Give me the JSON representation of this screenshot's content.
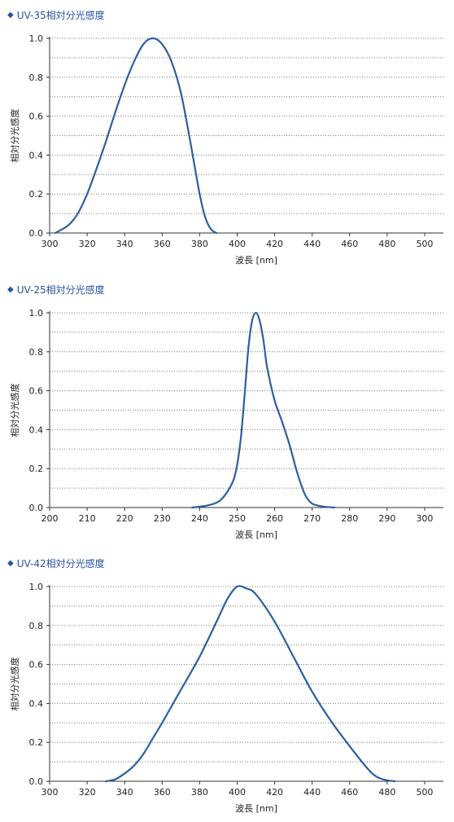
{
  "charts": [
    {
      "title": "UV-35相対分光感度",
      "bullet": "◆"
    },
    {
      "title": "UV-25相対分光感度",
      "bullet": "◆"
    },
    {
      "title": "UV-42相対分光感度",
      "bullet": "◆"
    }
  ],
  "chart_data": [
    {
      "type": "line",
      "title": "UV-35相対分光感度",
      "xlabel": "波長 [nm]",
      "ylabel": "相対分光感度",
      "xlim": [
        300,
        510
      ],
      "ylim": [
        0,
        1.0
      ],
      "xticks": [
        300,
        320,
        340,
        360,
        380,
        400,
        420,
        440,
        460,
        480,
        500
      ],
      "yticks": [
        0.0,
        0.2,
        0.4,
        0.6,
        0.8,
        1.0
      ],
      "tick_labels_y": [
        "0.0",
        "0.2",
        "0.4",
        "0.6",
        "0.8",
        "1.0"
      ],
      "grid": "horizontal dotted every 0.1",
      "series": [
        {
          "color": "#2c5f9e",
          "x": [
            303,
            310,
            315,
            320,
            325,
            330,
            335,
            340,
            345,
            350,
            355,
            360,
            365,
            370,
            375,
            380,
            383,
            386,
            389
          ],
          "y": [
            0.0,
            0.04,
            0.1,
            0.2,
            0.33,
            0.47,
            0.62,
            0.76,
            0.88,
            0.97,
            1.0,
            0.97,
            0.88,
            0.72,
            0.47,
            0.2,
            0.08,
            0.02,
            0.0
          ]
        }
      ]
    },
    {
      "type": "line",
      "title": "UV-25相対分光感度",
      "xlabel": "波長 [nm]",
      "ylabel": "相対分光感度",
      "xlim": [
        200,
        305
      ],
      "ylim": [
        0,
        1.0
      ],
      "xticks": [
        200,
        210,
        220,
        230,
        240,
        250,
        260,
        270,
        280,
        290,
        300
      ],
      "yticks": [
        0.0,
        0.2,
        0.4,
        0.6,
        0.8,
        1.0
      ],
      "tick_labels_y": [
        "0.0",
        "0.2",
        "0.4",
        "0.6",
        "0.8",
        "1.0"
      ],
      "grid": "horizontal dotted every 0.1",
      "series": [
        {
          "color": "#2c5f9e",
          "x": [
            238,
            242,
            245,
            247,
            249,
            250,
            251,
            252,
            253,
            254,
            255,
            256,
            257,
            258,
            260,
            262,
            264,
            266,
            268,
            270,
            273,
            276
          ],
          "y": [
            0.0,
            0.01,
            0.03,
            0.07,
            0.14,
            0.22,
            0.36,
            0.58,
            0.82,
            0.96,
            1.0,
            0.96,
            0.86,
            0.72,
            0.55,
            0.44,
            0.32,
            0.18,
            0.07,
            0.02,
            0.005,
            0.0
          ]
        }
      ]
    },
    {
      "type": "line",
      "title": "UV-42相対分光感度",
      "xlabel": "波長 [nm]",
      "ylabel": "相対分光感度",
      "xlim": [
        300,
        510
      ],
      "ylim": [
        0,
        1.0
      ],
      "xticks": [
        300,
        320,
        340,
        360,
        380,
        400,
        420,
        440,
        460,
        480,
        500
      ],
      "yticks": [
        0.0,
        0.2,
        0.4,
        0.6,
        0.8,
        1.0
      ],
      "tick_labels_y": [
        "0.0",
        "0.2",
        "0.4",
        "0.6",
        "0.8",
        "1.0"
      ],
      "grid": "horizontal dotted every 0.1",
      "series": [
        {
          "color": "#2c5f9e",
          "x": [
            330,
            335,
            340,
            345,
            350,
            355,
            360,
            370,
            380,
            390,
            395,
            400,
            405,
            410,
            420,
            430,
            440,
            450,
            460,
            470,
            475,
            480,
            484
          ],
          "y": [
            0.0,
            0.01,
            0.04,
            0.08,
            0.14,
            0.22,
            0.3,
            0.47,
            0.64,
            0.84,
            0.94,
            1.0,
            0.99,
            0.96,
            0.82,
            0.64,
            0.46,
            0.31,
            0.18,
            0.06,
            0.02,
            0.005,
            0.0
          ]
        }
      ]
    }
  ]
}
